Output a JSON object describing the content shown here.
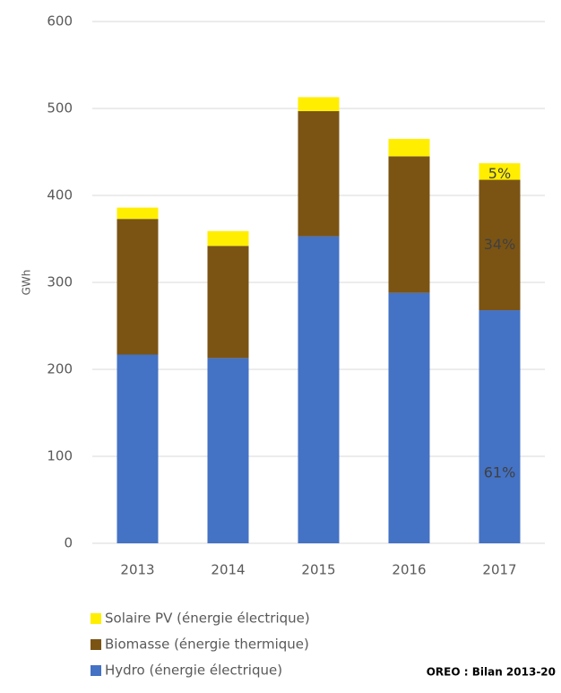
{
  "chart_data": {
    "type": "stacked_bar",
    "y_label": "GWh",
    "categories": [
      "2013",
      "2014",
      "2015",
      "2016",
      "2017"
    ],
    "series": [
      {
        "name": "Hydro (énergie électrique)",
        "color": "#4472c4",
        "values": [
          217,
          213,
          353,
          288,
          268
        ]
      },
      {
        "name": "Biomasse (énergie thermique)",
        "color": "#7b5414",
        "values": [
          156,
          129,
          144,
          157,
          150
        ]
      },
      {
        "name": "Solaire PV (énergie électrique)",
        "color": "#ffee00",
        "values": [
          13,
          17,
          16,
          20,
          19
        ]
      }
    ],
    "annotations": [
      "61%",
      "34%",
      "5%"
    ],
    "ylim": [
      0,
      600
    ],
    "yticks": [
      0,
      100,
      200,
      300,
      400,
      500,
      600
    ],
    "grid": true,
    "source": "OREO : Bilan 2013-20"
  }
}
